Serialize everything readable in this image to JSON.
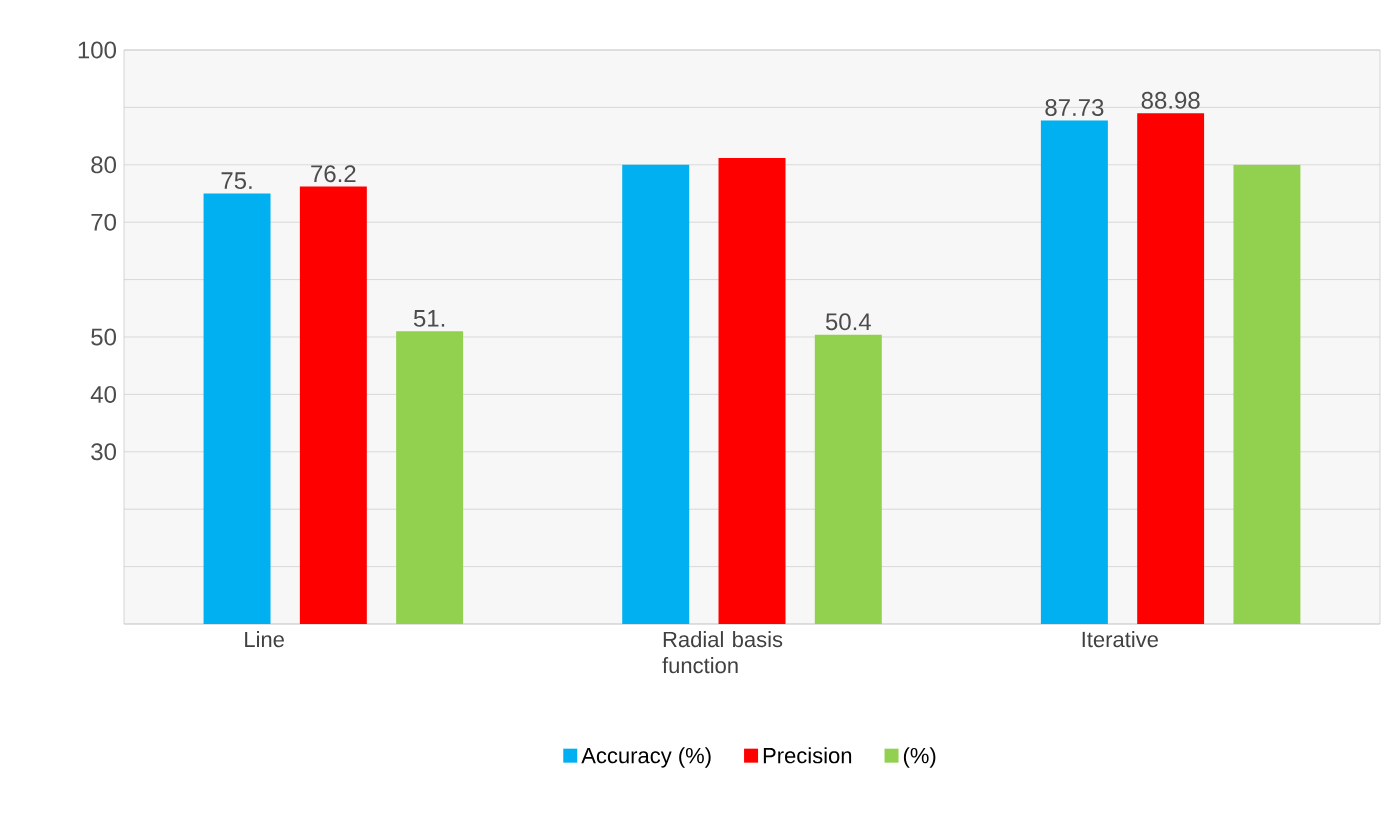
{
  "chart_data": {
    "type": "bar",
    "categories": [
      "Line",
      "Radial basis function",
      "Iterative"
    ],
    "series": [
      {
        "name": "Accuracy (%)",
        "color": "#00b0f0",
        "values": [
          75,
          80,
          87.73
        ],
        "value_labels": [
          "75.",
          null,
          "87.73"
        ]
      },
      {
        "name": "Precision",
        "color": "#ff0000",
        "values": [
          76.2,
          81.2,
          88.98
        ],
        "value_labels": [
          "76.2",
          null,
          "88.98"
        ]
      },
      {
        "name": "(%)",
        "color": "#92d050",
        "values": [
          51,
          50.4,
          80
        ],
        "value_labels": [
          "51.",
          "50.4",
          null
        ]
      }
    ],
    "ylim": [
      0,
      100
    ],
    "yticks": [
      {
        "value": 0,
        "label": null
      },
      {
        "value": 10,
        "label": null
      },
      {
        "value": 20,
        "label": null
      },
      {
        "value": 30,
        "label": "30"
      },
      {
        "value": 40,
        "label": "40"
      },
      {
        "value": 50,
        "label": "50"
      },
      {
        "value": 60,
        "label": null
      },
      {
        "value": 70,
        "label": "70"
      },
      80,
      {
        "value": 90,
        "label": null
      },
      {
        "value": 100,
        "label": "100"
      }
    ],
    "grid": "y",
    "legend": "bottom"
  }
}
